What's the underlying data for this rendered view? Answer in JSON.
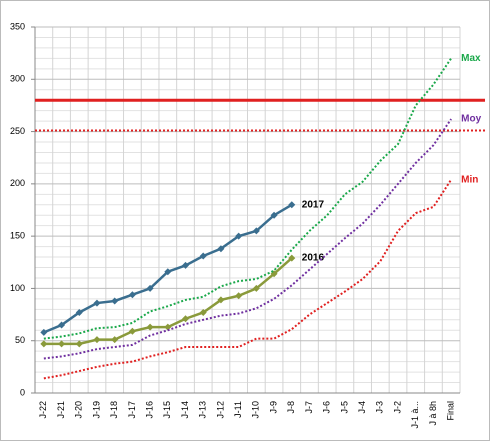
{
  "chart_data": {
    "type": "line",
    "categories": [
      "J-22",
      "J-21",
      "J-20",
      "J-19",
      "J-18",
      "J-17",
      "J-16",
      "J-15",
      "J-14",
      "J-13",
      "J-12",
      "J-11",
      "J-10",
      "J-9",
      "J-8",
      "J-7",
      "J-6",
      "J-5",
      "J-4",
      "J-3",
      "J-2",
      "J-1 à...",
      "J à 8h",
      "Final"
    ],
    "series": [
      {
        "name": "2017",
        "color": "#3a6e8f",
        "style": "solid",
        "marker": "diamond",
        "label_color": "#000000",
        "values": [
          58,
          65,
          77,
          86,
          88,
          94,
          100,
          116,
          122,
          131,
          138,
          150,
          155,
          170,
          180,
          null,
          null,
          null,
          null,
          null,
          null,
          null,
          null,
          null
        ]
      },
      {
        "name": "2016",
        "color": "#8a9a3b",
        "style": "solid",
        "marker": "diamond",
        "label_color": "#000000",
        "values": [
          47,
          47,
          47,
          51,
          51,
          59,
          63,
          63,
          71,
          77,
          89,
          93,
          100,
          114,
          129,
          null,
          null,
          null,
          null,
          null,
          null,
          null,
          null,
          null
        ]
      },
      {
        "name": "Max",
        "color": "#1aa84a",
        "style": "dotted",
        "marker": "none",
        "label_color": "#1aa84a",
        "values": [
          52,
          54,
          57,
          62,
          63,
          67,
          78,
          83,
          89,
          92,
          102,
          107,
          109,
          117,
          137,
          155,
          170,
          190,
          202,
          222,
          238,
          275,
          295,
          320
        ]
      },
      {
        "name": "Moy",
        "color": "#7030a0",
        "style": "dotted",
        "marker": "none",
        "label_color": "#7030a0",
        "values": [
          33,
          35,
          38,
          42,
          44,
          46,
          55,
          60,
          66,
          70,
          74,
          76,
          81,
          90,
          103,
          118,
          133,
          148,
          162,
          180,
          200,
          220,
          237,
          262
        ]
      },
      {
        "name": "Min",
        "color": "#e02020",
        "style": "dotted",
        "marker": "none",
        "label_color": "#e02020",
        "values": [
          14,
          17,
          21,
          25,
          28,
          30,
          35,
          39,
          44,
          44,
          44,
          44,
          52,
          52,
          61,
          75,
          86,
          97,
          109,
          126,
          155,
          172,
          178,
          204
        ]
      }
    ],
    "reference_lines": [
      {
        "value": 280,
        "color": "#e02020",
        "style": "solid"
      },
      {
        "value": 251,
        "color": "#e02020",
        "style": "dotted"
      }
    ],
    "ylim": [
      0,
      350
    ],
    "yticks": [
      0,
      50,
      100,
      150,
      200,
      250,
      300,
      350
    ],
    "grid": true,
    "minor_ticks_per_major": 5
  }
}
